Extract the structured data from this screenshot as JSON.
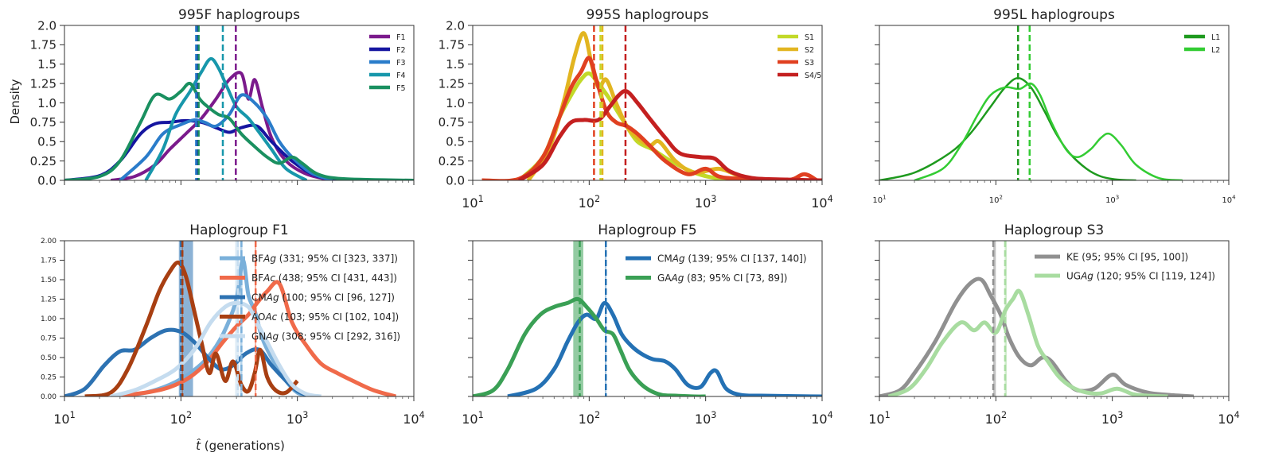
{
  "figure": {
    "ylabel": "Density",
    "xlabel_var": "t̂",
    "xlabel_unit": " (generations)"
  },
  "chart_data": [
    {
      "type": "line",
      "title": "995F haplogroups",
      "xscale": "log",
      "xlim": [
        10,
        10000
      ],
      "ylim": [
        0,
        2
      ],
      "xtick_labels": [],
      "ytick_labels": [
        "0.0",
        "0.25",
        "0.5",
        "0.75",
        "1.0",
        "1.25",
        "1.5",
        "1.75",
        "2.0"
      ],
      "legend": "top-right",
      "series": [
        {
          "name": "F1",
          "color": "#7b1a8c",
          "median": 296,
          "x": [
            25,
            40,
            60,
            80,
            110,
            150,
            200,
            260,
            330,
            380,
            430,
            500,
            600,
            800,
            1200,
            2000
          ],
          "y": [
            0,
            0.05,
            0.2,
            0.4,
            0.6,
            0.8,
            1.05,
            1.3,
            1.38,
            1.05,
            1.3,
            0.95,
            0.55,
            0.25,
            0.08,
            0
          ]
        },
        {
          "name": "F2",
          "color": "#1515a0",
          "median": 139,
          "x": [
            10,
            20,
            30,
            45,
            60,
            80,
            110,
            150,
            200,
            260,
            330,
            450,
            600,
            900,
            1500,
            3000
          ],
          "y": [
            0,
            0.06,
            0.25,
            0.6,
            0.73,
            0.75,
            0.77,
            0.75,
            0.68,
            0.62,
            0.68,
            0.7,
            0.5,
            0.25,
            0.05,
            0
          ]
        },
        {
          "name": "F3",
          "color": "#2a7cca",
          "median": 135,
          "x": [
            30,
            50,
            70,
            100,
            130,
            160,
            200,
            260,
            330,
            430,
            550,
            700,
            900,
            1300,
            2000
          ],
          "y": [
            0,
            0.3,
            0.6,
            0.72,
            0.78,
            0.75,
            0.7,
            0.85,
            1.1,
            1.0,
            0.8,
            0.5,
            0.3,
            0.1,
            0
          ]
        },
        {
          "name": "F4",
          "color": "#1797ab",
          "median": 229,
          "x": [
            50,
            70,
            90,
            120,
            150,
            180,
            210,
            250,
            300,
            380,
            480,
            600,
            800,
            1200
          ],
          "y": [
            0,
            0.4,
            0.85,
            1.15,
            1.4,
            1.57,
            1.45,
            1.2,
            0.95,
            0.8,
            0.6,
            0.4,
            0.15,
            0
          ]
        },
        {
          "name": "F5",
          "color": "#1a9060",
          "median": 142,
          "x": [
            10,
            20,
            30,
            45,
            60,
            80,
            100,
            120,
            145,
            170,
            210,
            260,
            330,
            420,
            550,
            700,
            900,
            1100,
            1500,
            2500,
            10000
          ],
          "y": [
            0,
            0.05,
            0.25,
            0.75,
            1.1,
            1.05,
            1.15,
            1.25,
            1.05,
            0.95,
            0.85,
            0.8,
            0.6,
            0.45,
            0.3,
            0.22,
            0.3,
            0.22,
            0.08,
            0.02,
            0
          ]
        }
      ]
    },
    {
      "type": "line",
      "title": "995S haplogroups",
      "xscale": "log",
      "xlim": [
        10,
        10000
      ],
      "ylim": [
        0,
        2
      ],
      "xtick_labels": [
        "10",
        "10",
        "10",
        "10"
      ],
      "xtick_exps": [
        "1",
        "2",
        "3",
        "4"
      ],
      "ytick_labels": [
        "0.0",
        "0.25",
        "0.5",
        "0.75",
        "1.0",
        "1.25",
        "1.5",
        "1.75",
        "2.0"
      ],
      "legend": "top-right",
      "series": [
        {
          "name": "S1",
          "color": "#c2d929",
          "median": 125,
          "x": [
            25,
            40,
            55,
            70,
            85,
            100,
            120,
            150,
            200,
            260,
            350,
            500,
            800,
            1200,
            2000
          ],
          "y": [
            0,
            0.3,
            0.8,
            1.1,
            1.3,
            1.38,
            1.25,
            1.05,
            0.75,
            0.5,
            0.4,
            0.25,
            0.1,
            0.03,
            0
          ]
        },
        {
          "name": "S2",
          "color": "#e2b520",
          "median": 130,
          "x": [
            30,
            45,
            60,
            75,
            90,
            105,
            120,
            140,
            170,
            210,
            260,
            330,
            400,
            550,
            800,
            1300,
            2000,
            3000
          ],
          "y": [
            0,
            0.4,
            1.0,
            1.6,
            1.9,
            1.5,
            1.2,
            1.3,
            1.0,
            0.7,
            0.55,
            0.45,
            0.5,
            0.25,
            0.1,
            0.15,
            0.05,
            0
          ]
        },
        {
          "name": "S3",
          "color": "#e04020",
          "median": 110,
          "x": [
            12,
            25,
            40,
            55,
            70,
            85,
            100,
            115,
            140,
            170,
            210,
            260,
            330,
            450,
            700,
            1000,
            1300,
            2000,
            5000,
            7000,
            9000
          ],
          "y": [
            0,
            0.02,
            0.3,
            0.8,
            1.2,
            1.4,
            1.58,
            1.3,
            0.9,
            0.75,
            0.7,
            0.6,
            0.45,
            0.25,
            0.08,
            0.15,
            0.05,
            0.02,
            0,
            0.08,
            0
          ]
        },
        {
          "name": "S4/5",
          "color": "#c42020",
          "median": 205,
          "x": [
            25,
            40,
            55,
            70,
            90,
            120,
            150,
            180,
            210,
            260,
            330,
            450,
            600,
            900,
            1200,
            1600,
            2500,
            5000,
            10000
          ],
          "y": [
            0,
            0.2,
            0.55,
            0.75,
            0.78,
            0.78,
            0.95,
            1.1,
            1.15,
            1.0,
            0.8,
            0.55,
            0.35,
            0.3,
            0.28,
            0.12,
            0.03,
            0.01,
            0
          ]
        }
      ]
    },
    {
      "type": "line",
      "title": "995L haplogroups",
      "xscale": "log",
      "xlim": [
        10,
        10000
      ],
      "ylim": [
        0,
        2
      ],
      "xtick_labels": [
        "10",
        "10",
        "10",
        "10"
      ],
      "xtick_exps": [
        "1",
        "2",
        "3",
        "4"
      ],
      "ytick_labels": [],
      "legend": "top-right",
      "series": [
        {
          "name": "L1",
          "color": "#1e9a1e",
          "median": 155,
          "x": [
            10,
            20,
            40,
            60,
            90,
            120,
            155,
            200,
            260,
            330,
            430,
            600,
            800,
            1100,
            1600
          ],
          "y": [
            0,
            0.1,
            0.35,
            0.6,
            0.95,
            1.2,
            1.32,
            1.2,
            0.9,
            0.6,
            0.35,
            0.15,
            0.05,
            0.01,
            0
          ]
        },
        {
          "name": "L2",
          "color": "#33cc33",
          "median": 195,
          "x": [
            20,
            35,
            50,
            70,
            90,
            120,
            160,
            200,
            240,
            300,
            400,
            500,
            650,
            800,
            950,
            1200,
            1600,
            2500,
            4000
          ],
          "y": [
            0,
            0.15,
            0.45,
            0.85,
            1.1,
            1.2,
            1.18,
            1.25,
            1.1,
            0.75,
            0.4,
            0.3,
            0.4,
            0.55,
            0.6,
            0.45,
            0.2,
            0.03,
            0
          ]
        }
      ]
    },
    {
      "type": "line",
      "title": "Haplogroup F1",
      "xscale": "log",
      "xlim": [
        10,
        10000
      ],
      "ylim": [
        0,
        2
      ],
      "xtick_labels": [
        "10",
        "10",
        "10",
        "10"
      ],
      "xtick_exps": [
        "1",
        "2",
        "3",
        "4"
      ],
      "ytick_labels": [
        "0.00",
        "0.25",
        "0.50",
        "0.75",
        "1.00",
        "1.25",
        "1.50",
        "1.75",
        "2.00"
      ],
      "legend": "top-right",
      "series": [
        {
          "pre": "BF",
          "sp": "Ag",
          "stat": " (331; 95% CI [323, 337])",
          "color": "#7ab0da",
          "median": 331,
          "ci": [
            323,
            337
          ],
          "x": [
            30,
            50,
            80,
            120,
            170,
            230,
            300,
            340,
            380,
            430,
            500,
            600,
            800,
            1000,
            1300
          ],
          "y": [
            0,
            0.05,
            0.15,
            0.3,
            0.5,
            0.8,
            1.25,
            1.75,
            1.3,
            1.1,
            0.75,
            0.5,
            0.2,
            0.05,
            0
          ]
        },
        {
          "pre": "BF",
          "sp": "Ac",
          "stat": " (438; 95% CI [431, 443])",
          "color": "#f06a4a",
          "median": 438,
          "ci": [
            431,
            443
          ],
          "x": [
            25,
            50,
            80,
            120,
            170,
            230,
            300,
            380,
            450,
            550,
            700,
            900,
            1200,
            1600,
            2200,
            3000,
            4500,
            7000
          ],
          "y": [
            0,
            0.05,
            0.12,
            0.25,
            0.45,
            0.7,
            0.9,
            1.05,
            1.2,
            1.35,
            1.45,
            0.95,
            0.65,
            0.42,
            0.3,
            0.2,
            0.08,
            0
          ]
        },
        {
          "pre": "CM",
          "sp": "Ag",
          "stat": " (100; 95% CI [96, 127])",
          "color": "#2d72b2",
          "median": 100,
          "ci": [
            96,
            127
          ],
          "x": [
            10,
            15,
            22,
            30,
            40,
            55,
            75,
            100,
            130,
            170,
            220,
            280,
            360,
            470,
            600,
            800,
            1000,
            1300
          ],
          "y": [
            0,
            0.1,
            0.4,
            0.58,
            0.6,
            0.75,
            0.85,
            0.83,
            0.7,
            0.5,
            0.35,
            0.4,
            0.55,
            0.6,
            0.4,
            0.2,
            0.07,
            0
          ]
        },
        {
          "pre": "AO",
          "sp": "Ac",
          "stat": " (103; 95% CI [102, 104])",
          "color": "#a83f12",
          "median": 103,
          "ci": [
            102,
            104
          ],
          "x": [
            15,
            25,
            35,
            50,
            65,
            80,
            95,
            110,
            130,
            150,
            175,
            200,
            240,
            280,
            330,
            380,
            430,
            480,
            550,
            650,
            800,
            1000
          ],
          "y": [
            0,
            0.05,
            0.35,
            0.9,
            1.35,
            1.6,
            1.72,
            1.55,
            1.1,
            0.7,
            0.3,
            0.55,
            0.2,
            0.45,
            0.15,
            0.07,
            0.3,
            0.6,
            0.25,
            0.08,
            0.05,
            0.2
          ]
        },
        {
          "pre": "GN",
          "sp": "Ag",
          "stat": " (308; 95% CI [292, 316])",
          "color": "#c5dcef",
          "median": 308,
          "ci": [
            292,
            316
          ],
          "x": [
            25,
            40,
            60,
            90,
            130,
            180,
            240,
            300,
            380,
            450,
            550,
            700,
            900,
            1200,
            1600
          ],
          "y": [
            0,
            0.08,
            0.2,
            0.35,
            0.6,
            0.95,
            1.15,
            1.2,
            1.15,
            0.95,
            0.7,
            0.4,
            0.15,
            0.03,
            0
          ]
        }
      ]
    },
    {
      "type": "line",
      "title": "Haplogroup F5",
      "xscale": "log",
      "xlim": [
        10,
        10000
      ],
      "ylim": [
        0,
        2
      ],
      "xtick_labels": [
        "10",
        "10",
        "10",
        "10"
      ],
      "xtick_exps": [
        "1",
        "2",
        "3",
        "4"
      ],
      "ytick_labels": [],
      "legend": "top-right",
      "series": [
        {
          "pre": "CM",
          "sp": "Ag",
          "stat": " (139; 95% CI [137, 140])",
          "color": "#2471b4",
          "median": 139,
          "ci": [
            137,
            140
          ],
          "x": [
            20,
            35,
            50,
            65,
            80,
            95,
            115,
            135,
            160,
            190,
            230,
            280,
            350,
            450,
            550,
            700,
            900,
            1100,
            1250,
            1500,
            2000,
            3000,
            5000,
            10000
          ],
          "y": [
            0,
            0.1,
            0.35,
            0.7,
            0.95,
            1.05,
            1.0,
            1.2,
            1.05,
            0.8,
            0.65,
            0.55,
            0.48,
            0.45,
            0.35,
            0.15,
            0.12,
            0.3,
            0.32,
            0.1,
            0.02,
            0.01,
            0.005,
            0
          ]
        },
        {
          "pre": "GA",
          "sp": "Ag",
          "stat": " (83; 95% CI [73, 89])",
          "color": "#3aa055",
          "median": 83,
          "ci": [
            73,
            89
          ],
          "x": [
            10,
            15,
            20,
            28,
            38,
            50,
            65,
            80,
            95,
            115,
            135,
            160,
            185,
            220,
            270,
            330,
            420,
            550,
            800,
            1000
          ],
          "y": [
            0,
            0.08,
            0.35,
            0.8,
            1.05,
            1.15,
            1.2,
            1.25,
            1.15,
            1.0,
            0.85,
            0.8,
            0.6,
            0.35,
            0.18,
            0.08,
            0.02,
            0.01,
            0,
            0
          ]
        }
      ]
    },
    {
      "type": "line",
      "title": "Haplogroup S3",
      "xscale": "log",
      "xlim": [
        10,
        10000
      ],
      "ylim": [
        0,
        2
      ],
      "xtick_labels": [
        "10",
        "10",
        "10",
        "10"
      ],
      "xtick_exps": [
        "1",
        "2",
        "3",
        "4"
      ],
      "ytick_labels": [],
      "legend": "top-right",
      "series": [
        {
          "pre": "KE",
          "sp": "",
          "stat": " (95; 95% CI [95, 100])",
          "color": "#909090",
          "median": 95,
          "ci": [
            95,
            100
          ],
          "x": [
            10,
            15,
            20,
            30,
            45,
            60,
            75,
            90,
            110,
            130,
            160,
            200,
            250,
            300,
            400,
            500,
            700,
            1000,
            1300,
            2000,
            3000,
            5000
          ],
          "y": [
            0,
            0.08,
            0.3,
            0.7,
            1.2,
            1.45,
            1.5,
            1.3,
            1.05,
            0.75,
            0.5,
            0.4,
            0.5,
            0.45,
            0.2,
            0.08,
            0.1,
            0.28,
            0.15,
            0.05,
            0.02,
            0
          ]
        },
        {
          "pre": "UG",
          "sp": "Ag",
          "stat": " (120; 95% CI [119, 124])",
          "color": "#a8dca0",
          "median": 120,
          "ci": [
            119,
            124
          ],
          "x": [
            12,
            18,
            25,
            35,
            50,
            65,
            80,
            100,
            120,
            140,
            160,
            190,
            230,
            280,
            350,
            450,
            600,
            800,
            1100,
            1500,
            2000,
            3000
          ],
          "y": [
            0,
            0.1,
            0.35,
            0.7,
            0.95,
            0.85,
            0.95,
            0.82,
            1.1,
            1.25,
            1.35,
            1.05,
            0.65,
            0.45,
            0.25,
            0.12,
            0.05,
            0.04,
            0.1,
            0.03,
            0.01,
            0
          ]
        }
      ]
    }
  ]
}
